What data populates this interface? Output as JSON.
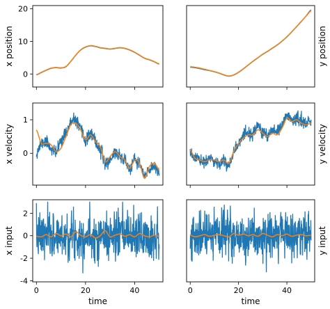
{
  "colors": {
    "measured": "#1f77b4",
    "estimate": "#ff7f0e",
    "axes": "#000000"
  },
  "chart_data": [
    {
      "id": "x_position",
      "type": "line",
      "position": "top-left",
      "xlabel": "",
      "ylabel": "x position",
      "ylabel_side": "left",
      "xlim": [
        -1.5,
        51.5
      ],
      "ylim": [
        -4,
        21
      ],
      "yticks": [
        0,
        10,
        20
      ],
      "xticks": [
        0,
        20,
        40
      ],
      "show_xticklabels": false,
      "series": [
        {
          "role": "measured",
          "style": "smooth",
          "x": [
            0,
            2,
            4,
            6,
            8,
            10,
            12,
            14,
            16,
            18,
            20,
            22,
            24,
            26,
            28,
            30,
            32,
            34,
            36,
            38,
            40,
            42,
            44,
            46,
            48,
            50
          ],
          "y": [
            -0.3,
            0.4,
            1.1,
            1.7,
            1.9,
            1.8,
            2.2,
            3.8,
            5.7,
            7.3,
            8.2,
            8.6,
            8.4,
            8.0,
            7.8,
            7.6,
            7.8,
            8.0,
            7.8,
            7.3,
            6.6,
            5.7,
            4.8,
            4.3,
            3.7,
            3.0
          ]
        },
        {
          "role": "estimate",
          "style": "smooth",
          "x": [
            0,
            2,
            4,
            6,
            8,
            10,
            12,
            14,
            16,
            18,
            20,
            22,
            24,
            26,
            28,
            30,
            32,
            34,
            36,
            38,
            40,
            42,
            44,
            46,
            48,
            50
          ],
          "y": [
            -0.2,
            0.5,
            1.2,
            1.8,
            2.0,
            1.9,
            2.3,
            3.9,
            5.8,
            7.4,
            8.3,
            8.7,
            8.5,
            8.1,
            7.9,
            7.7,
            7.9,
            8.1,
            7.9,
            7.4,
            6.7,
            5.8,
            4.9,
            4.4,
            3.8,
            3.1
          ]
        }
      ]
    },
    {
      "id": "y_position",
      "type": "line",
      "position": "top-right",
      "xlabel": "",
      "ylabel": "y position",
      "ylabel_side": "right",
      "xlim": [
        -1.5,
        51.5
      ],
      "ylim": [
        -7,
        21
      ],
      "yticks": [],
      "xticks": [
        0,
        20,
        40
      ],
      "show_xticklabels": false,
      "series": [
        {
          "role": "measured",
          "style": "smooth",
          "x": [
            0,
            2,
            4,
            6,
            8,
            10,
            12,
            14,
            16,
            18,
            20,
            22,
            24,
            26,
            28,
            30,
            32,
            34,
            36,
            38,
            40,
            42,
            44,
            46,
            48,
            50
          ],
          "y": [
            -0.2,
            -0.4,
            -0.7,
            -1.1,
            -1.4,
            -1.8,
            -2.3,
            -2.9,
            -3.3,
            -2.9,
            -2.0,
            -0.8,
            0.5,
            1.8,
            3.0,
            4.2,
            5.2,
            6.3,
            7.4,
            8.7,
            10.2,
            11.9,
            13.7,
            15.5,
            17.5,
            19.5
          ]
        },
        {
          "role": "estimate",
          "style": "smooth",
          "x": [
            0,
            2,
            4,
            6,
            8,
            10,
            12,
            14,
            16,
            18,
            20,
            22,
            24,
            26,
            28,
            30,
            32,
            34,
            36,
            38,
            40,
            42,
            44,
            46,
            48,
            50
          ],
          "y": [
            0.0,
            -0.2,
            -0.5,
            -0.9,
            -1.3,
            -1.7,
            -2.2,
            -2.8,
            -3.2,
            -2.8,
            -1.9,
            -0.7,
            0.6,
            1.9,
            3.1,
            4.3,
            5.3,
            6.4,
            7.5,
            8.8,
            10.3,
            12.0,
            13.8,
            15.6,
            17.4,
            19.2
          ]
        }
      ]
    },
    {
      "id": "x_velocity",
      "type": "line",
      "position": "middle-left",
      "xlabel": "",
      "ylabel": "x velocity",
      "ylabel_side": "left",
      "xlim": [
        -1.5,
        51.5
      ],
      "ylim": [
        -0.95,
        1.5
      ],
      "yticks": [
        0,
        1
      ],
      "xticks": [
        0,
        20,
        40
      ],
      "show_xticklabels": false,
      "series": [
        {
          "role": "measured",
          "style": "noisy",
          "noise": 0.09,
          "seed": 11,
          "x": [
            0,
            2,
            4,
            6,
            8,
            10,
            12,
            14,
            16,
            18,
            20,
            22,
            24,
            26,
            28,
            30,
            32,
            34,
            36,
            38,
            40,
            42,
            44,
            46,
            48,
            50
          ],
          "y": [
            0.0,
            0.3,
            0.35,
            0.15,
            0.0,
            0.4,
            0.6,
            0.9,
            1.0,
            0.7,
            0.35,
            0.6,
            0.35,
            0.1,
            -0.3,
            -0.2,
            0.05,
            -0.1,
            -0.2,
            -0.5,
            -0.2,
            -0.3,
            -0.7,
            -0.5,
            -0.35,
            -0.55
          ]
        },
        {
          "role": "estimate",
          "style": "smooth",
          "x": [
            0,
            2,
            4,
            6,
            8,
            10,
            12,
            14,
            16,
            18,
            20,
            22,
            24,
            26,
            28,
            30,
            32,
            34,
            36,
            38,
            40,
            42,
            44,
            46,
            48,
            50
          ],
          "y": [
            0.7,
            0.3,
            0.3,
            0.25,
            0.05,
            0.15,
            0.5,
            0.85,
            0.9,
            0.7,
            0.4,
            0.55,
            0.35,
            0.2,
            -0.25,
            -0.1,
            0.05,
            -0.1,
            -0.2,
            -0.45,
            -0.2,
            -0.3,
            -0.75,
            -0.4,
            -0.3,
            -0.5
          ]
        }
      ]
    },
    {
      "id": "y_velocity",
      "type": "line",
      "position": "middle-right",
      "xlabel": "",
      "ylabel": "y velocity",
      "ylabel_side": "right",
      "xlim": [
        -1.5,
        51.5
      ],
      "ylim": [
        -0.95,
        1.5
      ],
      "yticks": [],
      "xticks": [
        0,
        20,
        40
      ],
      "show_xticklabels": false,
      "series": [
        {
          "role": "measured",
          "style": "noisy",
          "noise": 0.09,
          "seed": 23,
          "x": [
            0,
            2,
            4,
            6,
            8,
            10,
            12,
            14,
            16,
            18,
            20,
            22,
            24,
            26,
            28,
            30,
            32,
            34,
            36,
            38,
            40,
            42,
            44,
            46,
            48,
            50
          ],
          "y": [
            -0.05,
            -0.1,
            -0.2,
            -0.3,
            -0.15,
            -0.25,
            -0.3,
            -0.2,
            -0.4,
            0.1,
            0.3,
            0.5,
            0.6,
            0.55,
            0.8,
            0.65,
            0.5,
            0.65,
            0.6,
            0.85,
            1.15,
            1.0,
            1.05,
            0.95,
            0.9,
            0.95
          ]
        },
        {
          "role": "estimate",
          "style": "smooth",
          "x": [
            0,
            2,
            4,
            6,
            8,
            10,
            12,
            14,
            16,
            18,
            20,
            22,
            24,
            26,
            28,
            30,
            32,
            34,
            36,
            38,
            40,
            42,
            44,
            46,
            48,
            50
          ],
          "y": [
            0.1,
            -0.15,
            -0.2,
            -0.25,
            -0.2,
            -0.2,
            -0.25,
            -0.2,
            -0.3,
            0.05,
            0.3,
            0.45,
            0.55,
            0.55,
            0.7,
            0.6,
            0.5,
            0.6,
            0.55,
            0.75,
            1.05,
            0.95,
            1.0,
            0.9,
            0.85,
            0.9
          ]
        }
      ]
    },
    {
      "id": "x_input",
      "type": "line",
      "position": "bottom-left",
      "xlabel": "time",
      "ylabel": "x input",
      "ylabel_side": "left",
      "xlim": [
        -1.5,
        51.5
      ],
      "ylim": [
        -4.1,
        3.2
      ],
      "yticks": [
        -4,
        -2,
        0,
        2
      ],
      "xticks": [
        0,
        20,
        40
      ],
      "show_xticklabels": true,
      "series": [
        {
          "role": "measured",
          "style": "random",
          "sigma": 1.05,
          "clip": [
            -3.9,
            3.0
          ],
          "samples": 500,
          "seed": 7,
          "x": [
            0,
            50
          ],
          "y": [
            0,
            0
          ]
        },
        {
          "role": "estimate",
          "style": "smooth",
          "x": [
            0,
            2,
            4,
            6,
            8,
            10,
            12,
            14,
            16,
            18,
            20,
            22,
            24,
            26,
            28,
            30,
            32,
            34,
            36,
            38,
            40,
            42,
            44,
            46,
            48,
            50
          ],
          "y": [
            -0.05,
            -0.1,
            0.1,
            -0.1,
            0.2,
            0.0,
            0.15,
            -0.1,
            0.35,
            0.05,
            -0.1,
            0.1,
            -0.2,
            0.0,
            0.45,
            -0.1,
            0.05,
            0.15,
            -0.05,
            0.1,
            -0.1,
            0.2,
            0.0,
            -0.1,
            0.05,
            -0.05
          ]
        }
      ]
    },
    {
      "id": "y_input",
      "type": "line",
      "position": "bottom-right",
      "xlabel": "time",
      "ylabel": "y input",
      "ylabel_side": "right",
      "xlim": [
        -1.5,
        51.5
      ],
      "ylim": [
        -4.1,
        3.2
      ],
      "yticks": [],
      "xticks": [
        0,
        20,
        40
      ],
      "show_xticklabels": true,
      "series": [
        {
          "role": "measured",
          "style": "random",
          "sigma": 1.05,
          "clip": [
            -3.4,
            3.1
          ],
          "samples": 500,
          "seed": 19,
          "x": [
            0,
            50
          ],
          "y": [
            0,
            0
          ]
        },
        {
          "role": "estimate",
          "style": "smooth",
          "x": [
            0,
            2,
            4,
            6,
            8,
            10,
            12,
            14,
            16,
            18,
            20,
            22,
            24,
            26,
            28,
            30,
            32,
            34,
            36,
            38,
            40,
            42,
            44,
            46,
            48,
            50
          ],
          "y": [
            0.05,
            -0.1,
            0.0,
            0.1,
            -0.05,
            0.05,
            0.1,
            0.0,
            -0.1,
            0.2,
            0.05,
            0.15,
            0.0,
            0.1,
            -0.05,
            0.2,
            0.05,
            -0.1,
            0.1,
            0.0,
            0.15,
            -0.05,
            0.05,
            0.1,
            0.0,
            0.05
          ]
        }
      ]
    }
  ]
}
